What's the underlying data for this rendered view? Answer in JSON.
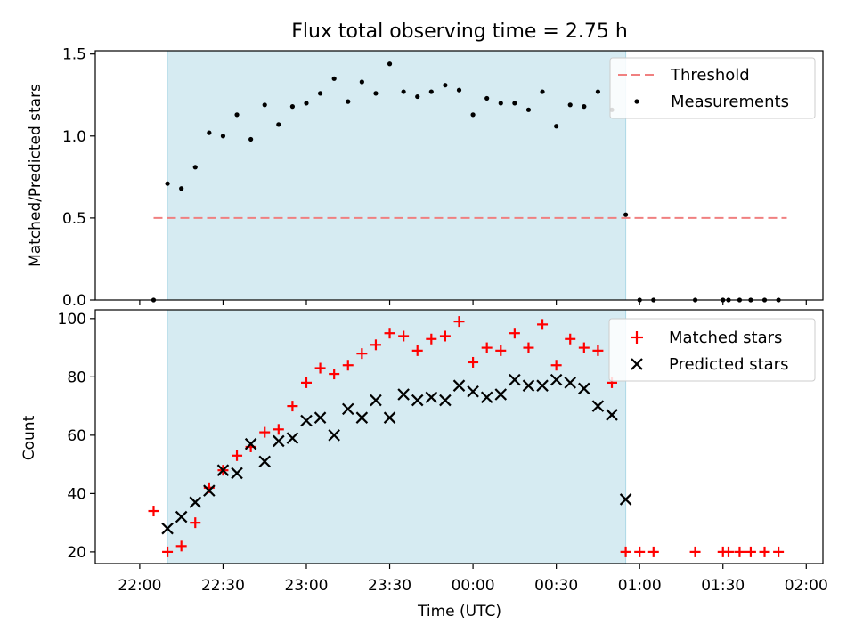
{
  "chart_data": [
    {
      "type": "scatter",
      "title": "Flux total observing time = 2.75 h",
      "xlabel": "",
      "ylabel": "Matched/Predicted stars",
      "xlim_minutes_from_22h": [
        -16,
        246
      ],
      "ylim": [
        0,
        1.52
      ],
      "yticks": [
        "0.0",
        "0.5",
        "1.0",
        "1.5"
      ],
      "shaded_span_minutes_from_22h": [
        10,
        175
      ],
      "threshold": {
        "name": "Threshold",
        "value": 0.5,
        "x_range_minutes_from_22h": [
          5,
          233
        ],
        "color": "#f08080"
      },
      "series": [
        {
          "name": "Measurements",
          "color": "#000000",
          "points": [
            [
              5,
              0
            ],
            [
              10,
              0.71
            ],
            [
              15,
              0.68
            ],
            [
              20,
              0.81
            ],
            [
              25,
              1.02
            ],
            [
              30,
              1.0
            ],
            [
              35,
              1.13
            ],
            [
              40,
              0.98
            ],
            [
              45,
              1.19
            ],
            [
              50,
              1.07
            ],
            [
              55,
              1.18
            ],
            [
              60,
              1.2
            ],
            [
              65,
              1.26
            ],
            [
              70,
              1.35
            ],
            [
              75,
              1.21
            ],
            [
              80,
              1.33
            ],
            [
              85,
              1.26
            ],
            [
              90,
              1.44
            ],
            [
              95,
              1.27
            ],
            [
              100,
              1.24
            ],
            [
              105,
              1.27
            ],
            [
              110,
              1.31
            ],
            [
              115,
              1.28
            ],
            [
              120,
              1.13
            ],
            [
              125,
              1.23
            ],
            [
              130,
              1.2
            ],
            [
              135,
              1.2
            ],
            [
              140,
              1.16
            ],
            [
              145,
              1.27
            ],
            [
              150,
              1.06
            ],
            [
              155,
              1.19
            ],
            [
              160,
              1.18
            ],
            [
              165,
              1.27
            ],
            [
              170,
              1.16
            ],
            [
              175,
              0.52
            ],
            [
              180,
              0
            ],
            [
              185,
              0
            ],
            [
              200,
              0
            ],
            [
              210,
              0
            ],
            [
              212,
              0
            ],
            [
              216,
              0
            ],
            [
              220,
              0
            ],
            [
              225,
              0
            ],
            [
              230,
              0
            ]
          ]
        }
      ]
    },
    {
      "type": "scatter",
      "title": "",
      "xlabel": "Time (UTC)",
      "ylabel": "Count",
      "xlim_minutes_from_22h": [
        -16,
        246
      ],
      "ylim": [
        16,
        103
      ],
      "yticks": [
        "20",
        "40",
        "60",
        "80",
        "100"
      ],
      "xticks": [
        "22:00",
        "22:30",
        "23:00",
        "23:30",
        "00:00",
        "00:30",
        "01:00",
        "01:30",
        "02:00"
      ],
      "shaded_span_minutes_from_22h": [
        10,
        175
      ],
      "series": [
        {
          "name": "Matched stars",
          "marker": "plus",
          "color": "#ff0000",
          "points": [
            [
              5,
              34
            ],
            [
              10,
              20
            ],
            [
              15,
              22
            ],
            [
              20,
              30
            ],
            [
              25,
              42
            ],
            [
              30,
              48
            ],
            [
              35,
              53
            ],
            [
              40,
              56
            ],
            [
              45,
              61
            ],
            [
              50,
              62
            ],
            [
              55,
              70
            ],
            [
              60,
              78
            ],
            [
              65,
              83
            ],
            [
              70,
              81
            ],
            [
              75,
              84
            ],
            [
              80,
              88
            ],
            [
              85,
              91
            ],
            [
              90,
              95
            ],
            [
              95,
              94
            ],
            [
              100,
              89
            ],
            [
              105,
              93
            ],
            [
              110,
              94
            ],
            [
              115,
              99
            ],
            [
              120,
              85
            ],
            [
              125,
              90
            ],
            [
              130,
              89
            ],
            [
              135,
              95
            ],
            [
              140,
              90
            ],
            [
              145,
              98
            ],
            [
              150,
              84
            ],
            [
              155,
              93
            ],
            [
              160,
              90
            ],
            [
              165,
              89
            ],
            [
              170,
              78
            ],
            [
              175,
              20
            ],
            [
              180,
              20
            ],
            [
              185,
              20
            ],
            [
              200,
              20
            ],
            [
              210,
              20
            ],
            [
              212,
              20
            ],
            [
              216,
              20
            ],
            [
              220,
              20
            ],
            [
              225,
              20
            ],
            [
              230,
              20
            ]
          ]
        },
        {
          "name": "Predicted stars",
          "marker": "x",
          "color": "#000000",
          "points": [
            [
              10,
              28
            ],
            [
              15,
              32
            ],
            [
              20,
              37
            ],
            [
              25,
              41
            ],
            [
              30,
              48
            ],
            [
              35,
              47
            ],
            [
              40,
              57
            ],
            [
              45,
              51
            ],
            [
              50,
              58
            ],
            [
              55,
              59
            ],
            [
              60,
              65
            ],
            [
              65,
              66
            ],
            [
              70,
              60
            ],
            [
              75,
              69
            ],
            [
              80,
              66
            ],
            [
              85,
              72
            ],
            [
              90,
              66
            ],
            [
              95,
              74
            ],
            [
              100,
              72
            ],
            [
              105,
              73
            ],
            [
              110,
              72
            ],
            [
              115,
              77
            ],
            [
              120,
              75
            ],
            [
              125,
              73
            ],
            [
              130,
              74
            ],
            [
              135,
              79
            ],
            [
              140,
              77
            ],
            [
              145,
              77
            ],
            [
              150,
              79
            ],
            [
              155,
              78
            ],
            [
              160,
              76
            ],
            [
              165,
              70
            ],
            [
              170,
              67
            ],
            [
              175,
              38
            ]
          ]
        }
      ]
    }
  ]
}
